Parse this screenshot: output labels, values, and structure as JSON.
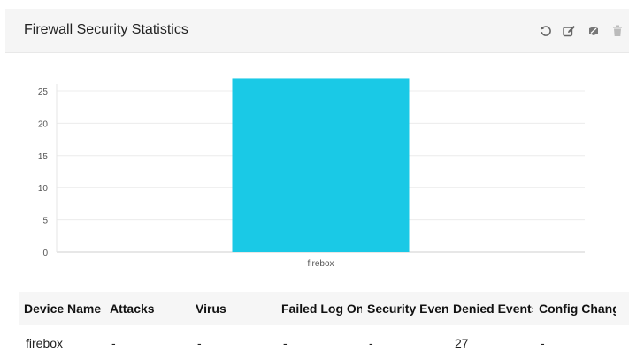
{
  "widget": {
    "title": "Firewall Security Statistics",
    "tools": [
      {
        "icon": "refresh-icon"
      },
      {
        "icon": "edit-icon"
      },
      {
        "icon": "detach-icon"
      },
      {
        "icon": "trash-icon"
      }
    ]
  },
  "chart_data": {
    "type": "bar",
    "categories": [
      "firebox"
    ],
    "values": [
      27
    ],
    "title": "",
    "xlabel": "",
    "ylabel": "",
    "ylim": [
      0,
      27
    ],
    "yticks": [
      0,
      5,
      10,
      15,
      20,
      25
    ],
    "grid": true,
    "bar_color": "#1ac9e6"
  },
  "table": {
    "columns": [
      "Device Name",
      "Attacks",
      "Virus",
      "Failed Log Ons",
      "Security Events",
      "Denied Events",
      "Config Changes"
    ],
    "rows": [
      [
        "firebox",
        "-",
        "-",
        "-",
        "-",
        "27",
        "-"
      ]
    ]
  }
}
